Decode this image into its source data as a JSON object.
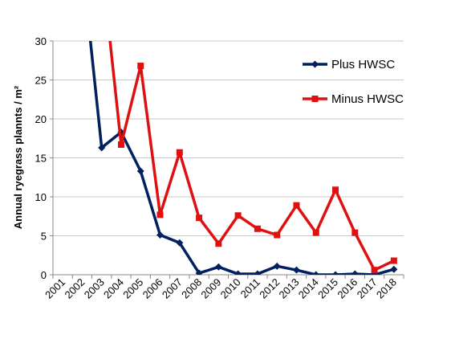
{
  "chart_data": {
    "type": "line",
    "title": "",
    "xlabel": "",
    "ylabel": "Annual ryegrass plannts / m²",
    "ylim": [
      0,
      30
    ],
    "yticks": [
      0,
      5,
      10,
      15,
      20,
      25,
      30
    ],
    "grid": "horizontal",
    "legend": "right",
    "categories": [
      "2001",
      "2002",
      "2003",
      "2004",
      "2005",
      "2006",
      "2007",
      "2008",
      "2009",
      "2010",
      "2011",
      "2012",
      "2013",
      "2014",
      "2015",
      "2016",
      "2017",
      "2018"
    ],
    "series": [
      {
        "name": "Plus HWSC",
        "color": "#002060",
        "marker": "diamond",
        "values": [
          null,
          40,
          16.3,
          18.3,
          13.3,
          5.1,
          4.1,
          0.2,
          1.0,
          0.1,
          0.1,
          1.1,
          0.6,
          0.0,
          0.0,
          0.1,
          0.0,
          0.7
        ]
      },
      {
        "name": "Minus HWSC",
        "color": "#E01010",
        "marker": "square",
        "values": [
          null,
          null,
          40,
          16.7,
          26.8,
          7.7,
          15.7,
          7.3,
          4.0,
          7.6,
          5.9,
          5.1,
          8.9,
          5.4,
          10.9,
          5.4,
          0.6,
          1.8
        ]
      }
    ]
  }
}
